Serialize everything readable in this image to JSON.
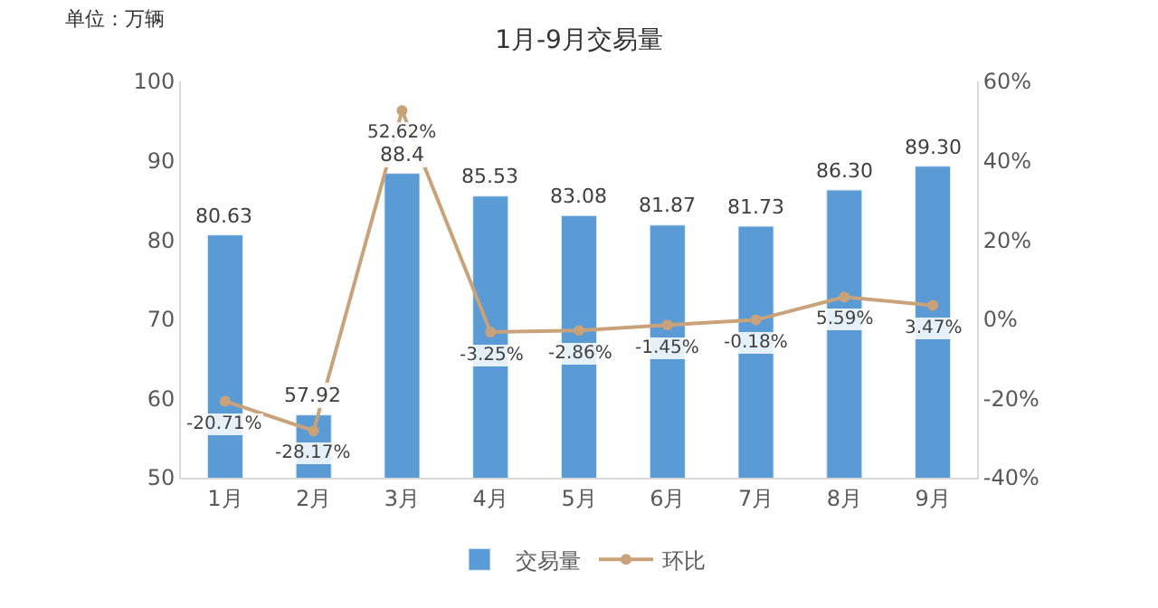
{
  "chart_data": {
    "type": "bar",
    "title": "1月-9月交易量",
    "annotations": [
      "单位：万辆"
    ],
    "categories": [
      "1月",
      "2月",
      "3月",
      "4月",
      "5月",
      "6月",
      "7月",
      "8月",
      "9月"
    ],
    "series": [
      {
        "name": "交易量",
        "color": "#5b9bd5",
        "values": [
          80.63,
          57.92,
          88.4,
          85.53,
          83.08,
          81.87,
          81.73,
          86.3,
          89.3
        ],
        "value_labels": [
          "80.63",
          "57.92",
          "88.4",
          "85.53",
          "83.08",
          "81.87",
          "81.73",
          "86.30",
          "89.30"
        ]
      },
      {
        "name": "环比",
        "type": "line",
        "axis": "y2",
        "color": "#c9a27a",
        "marker": "circle",
        "values": [
          -20.71,
          -28.17,
          52.62,
          -3.25,
          -2.86,
          -1.45,
          -0.18,
          5.59,
          3.47
        ],
        "value_labels": [
          "-20.71%",
          "-28.17%",
          "52.62%",
          "-3.25%",
          "-2.86%",
          "-1.45%",
          "-0.18%",
          "5.59%",
          "3.47%"
        ]
      }
    ],
    "ylim": [
      50,
      100
    ],
    "yticks": [
      50,
      60,
      70,
      80,
      90,
      100
    ],
    "y2lim": [
      -40,
      60
    ],
    "y2ticks": [
      {
        "value": -40,
        "label": "-40%"
      },
      {
        "value": -20,
        "label": "-20%"
      },
      {
        "value": 0,
        "label": "0%"
      },
      {
        "value": 20,
        "label": "20%"
      },
      {
        "value": 40,
        "label": "40%"
      },
      {
        "value": 60,
        "label": "60%"
      }
    ],
    "legend": "bottom"
  }
}
